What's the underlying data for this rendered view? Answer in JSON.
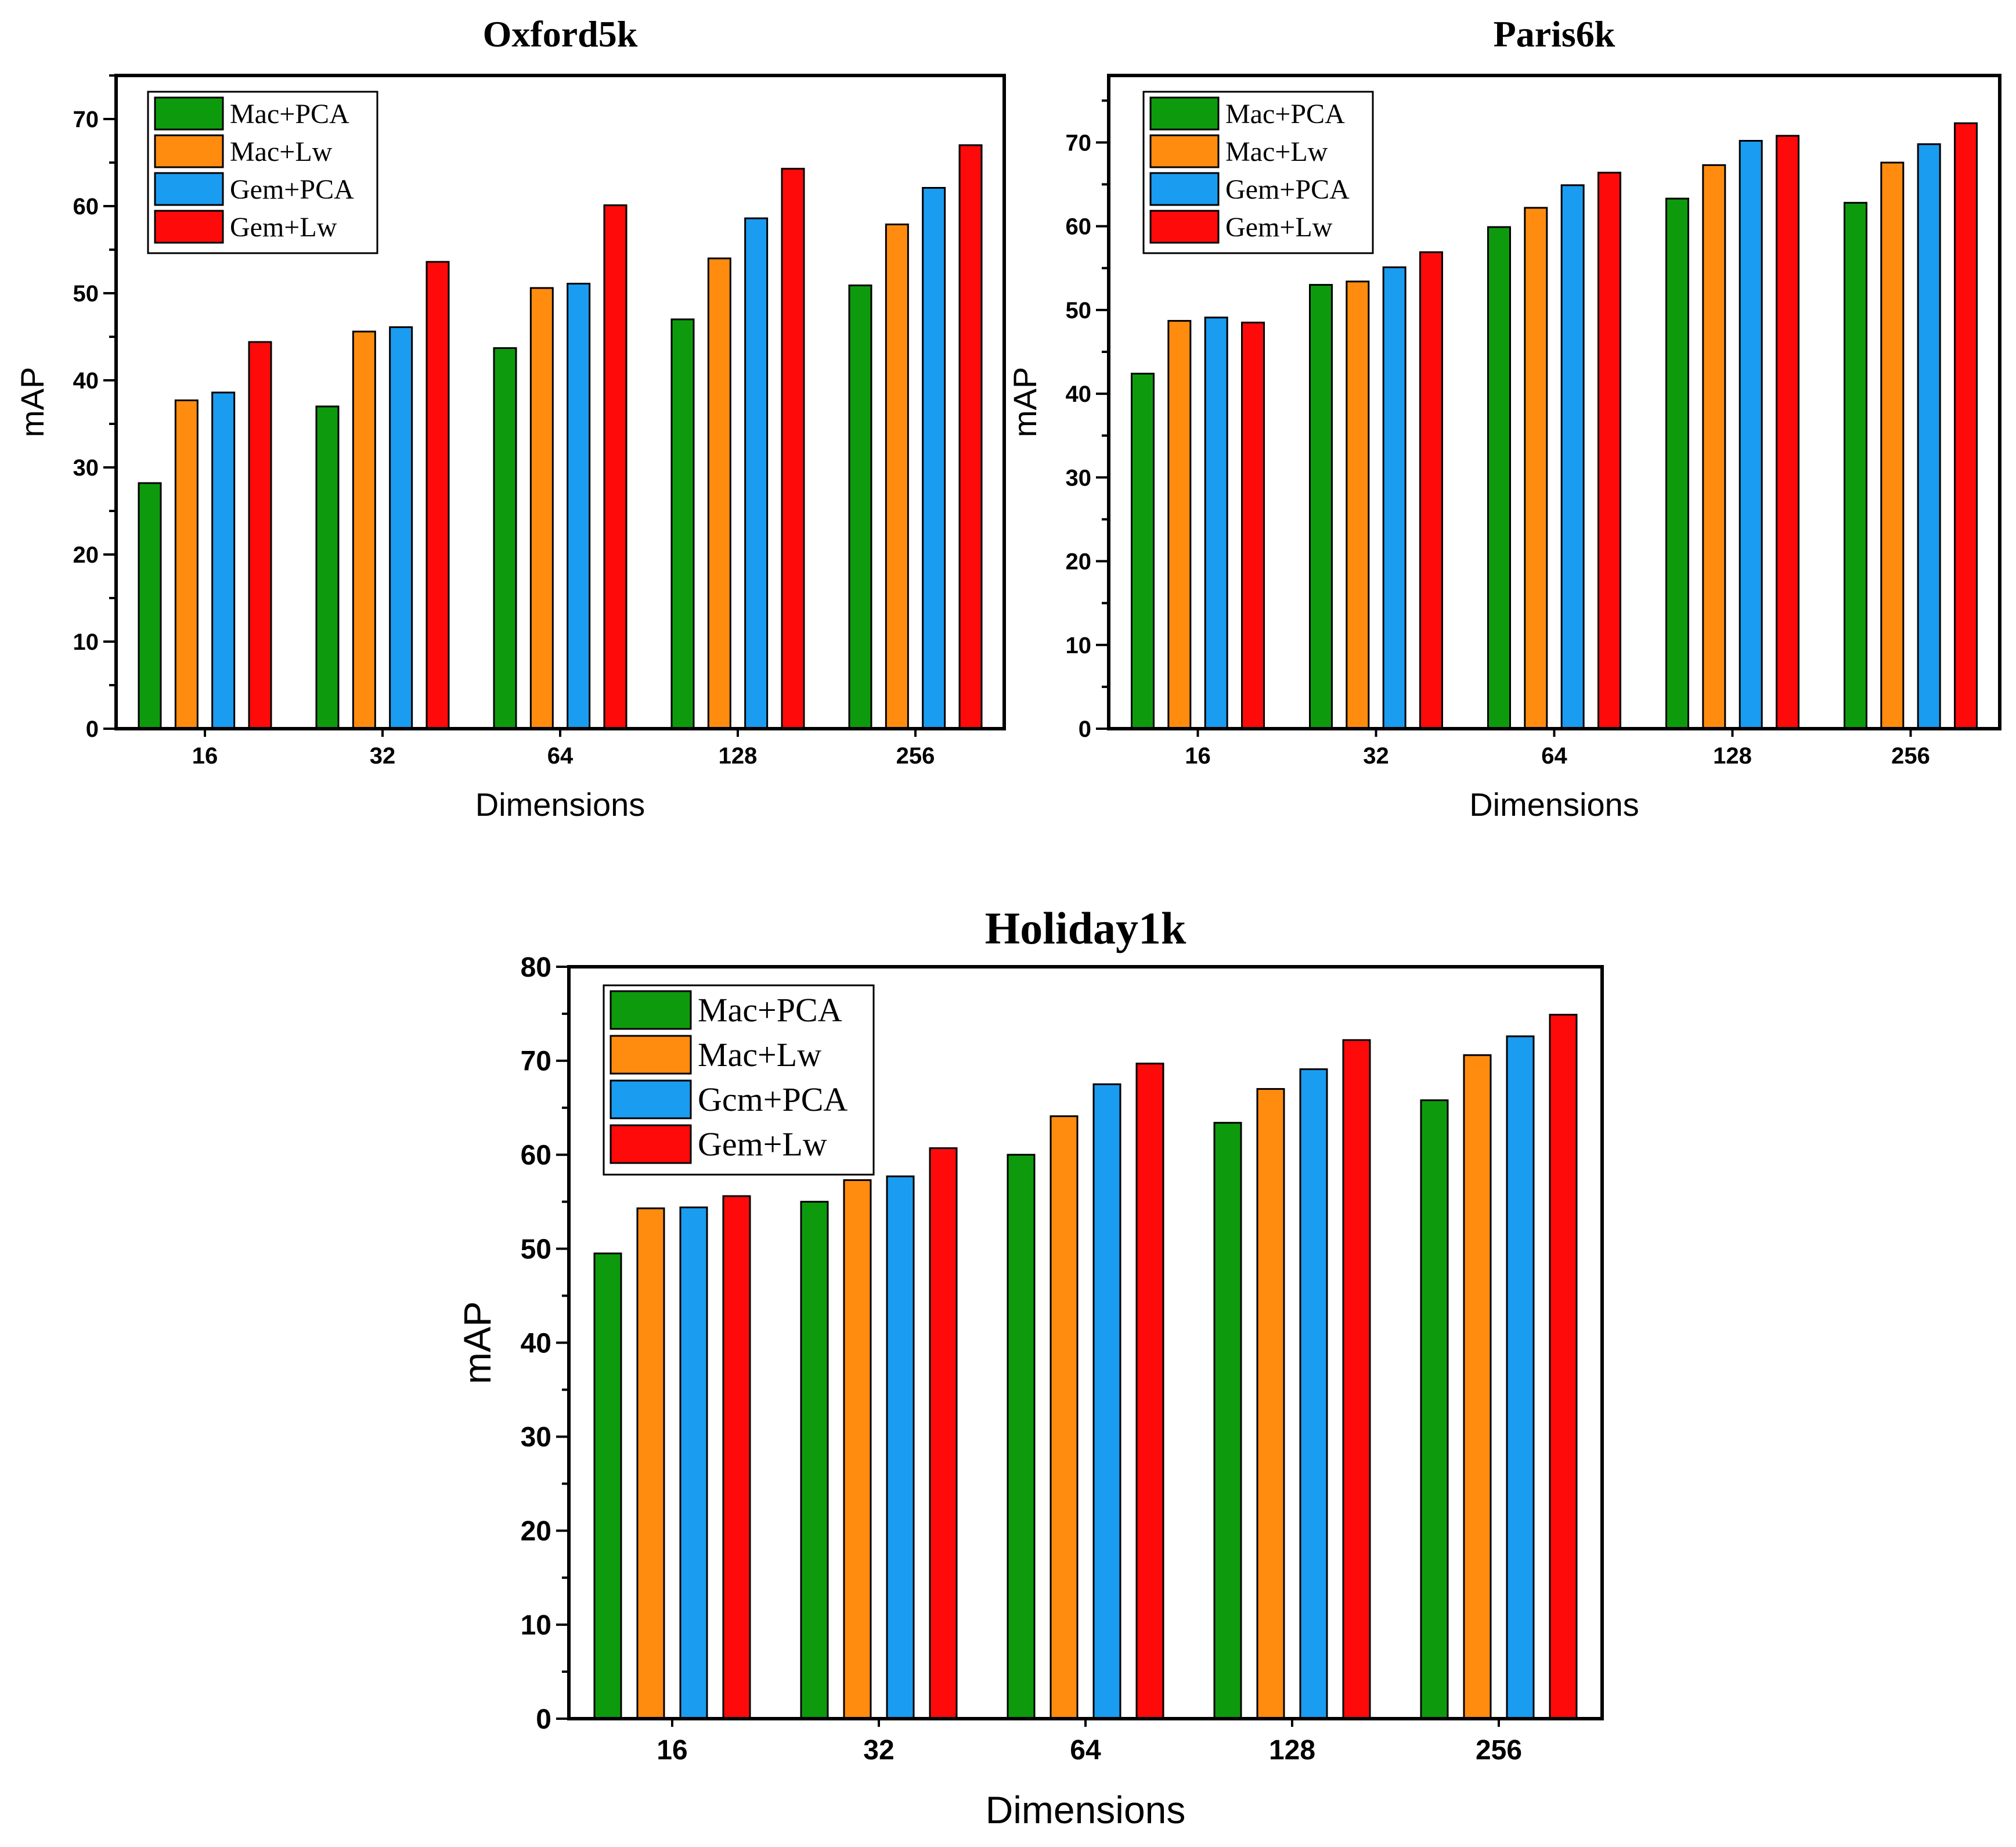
{
  "chart_data": [
    {
      "type": "bar",
      "title": "Oxford5k",
      "xlabel": "Dimensions",
      "ylabel": "mAP",
      "categories": [
        "16",
        "32",
        "64",
        "128",
        "256"
      ],
      "ylim": [
        0,
        75
      ],
      "yticks": [
        0,
        10,
        20,
        30,
        40,
        50,
        60,
        70
      ],
      "legend_position": "top-left",
      "series": [
        {
          "name": "Mac+PCA",
          "color": "#0d9b0d",
          "values": [
            28.2,
            37.0,
            43.7,
            47.0,
            50.9
          ]
        },
        {
          "name": "Mac+Lw",
          "color": "#ff8c0f",
          "values": [
            37.7,
            45.6,
            50.6,
            54.0,
            57.9
          ]
        },
        {
          "name": "Gem+PCA",
          "color": "#1a9cf0",
          "values": [
            38.6,
            46.1,
            51.1,
            58.6,
            62.1
          ]
        },
        {
          "name": "Gem+Lw",
          "color": "#ff0a0a",
          "values": [
            44.4,
            53.6,
            60.1,
            64.3,
            67.0
          ]
        }
      ]
    },
    {
      "type": "bar",
      "title": "Paris6k",
      "xlabel": "Dimensions",
      "ylabel": "mAP",
      "categories": [
        "16",
        "32",
        "64",
        "128",
        "256"
      ],
      "ylim": [
        0,
        78
      ],
      "yticks": [
        0,
        10,
        20,
        30,
        40,
        50,
        60,
        70
      ],
      "legend_position": "top-left",
      "series": [
        {
          "name": "Mac+PCA",
          "color": "#0d9b0d",
          "values": [
            42.4,
            53.0,
            59.9,
            63.3,
            62.8
          ]
        },
        {
          "name": "Mac+Lw",
          "color": "#ff8c0f",
          "values": [
            48.7,
            53.4,
            62.2,
            67.3,
            67.6
          ]
        },
        {
          "name": "Gem+PCA",
          "color": "#1a9cf0",
          "values": [
            49.1,
            55.1,
            64.9,
            70.2,
            69.8
          ]
        },
        {
          "name": "Gem+Lw",
          "color": "#ff0a0a",
          "values": [
            48.5,
            56.9,
            66.4,
            70.8,
            72.3
          ]
        }
      ]
    },
    {
      "type": "bar",
      "title": "Holiday1k",
      "xlabel": "Dimensions",
      "ylabel": "mAP",
      "categories": [
        "16",
        "32",
        "64",
        "128",
        "256"
      ],
      "ylim": [
        0,
        80
      ],
      "yticks": [
        0,
        10,
        20,
        30,
        40,
        50,
        60,
        70,
        80
      ],
      "legend_position": "top-left",
      "series": [
        {
          "name": "Mac+PCA",
          "color": "#0d9b0d",
          "values": [
            49.5,
            55.0,
            60.0,
            63.4,
            65.8
          ]
        },
        {
          "name": "Mac+Lw",
          "color": "#ff8c0f",
          "values": [
            54.3,
            57.3,
            64.1,
            67.0,
            70.6
          ]
        },
        {
          "name": "Gcm+PCA",
          "color": "#1a9cf0",
          "values": [
            54.4,
            57.7,
            67.5,
            69.1,
            72.6
          ]
        },
        {
          "name": "Gem+Lw",
          "color": "#ff0a0a",
          "values": [
            55.6,
            60.7,
            69.7,
            72.2,
            74.9
          ]
        }
      ]
    }
  ]
}
